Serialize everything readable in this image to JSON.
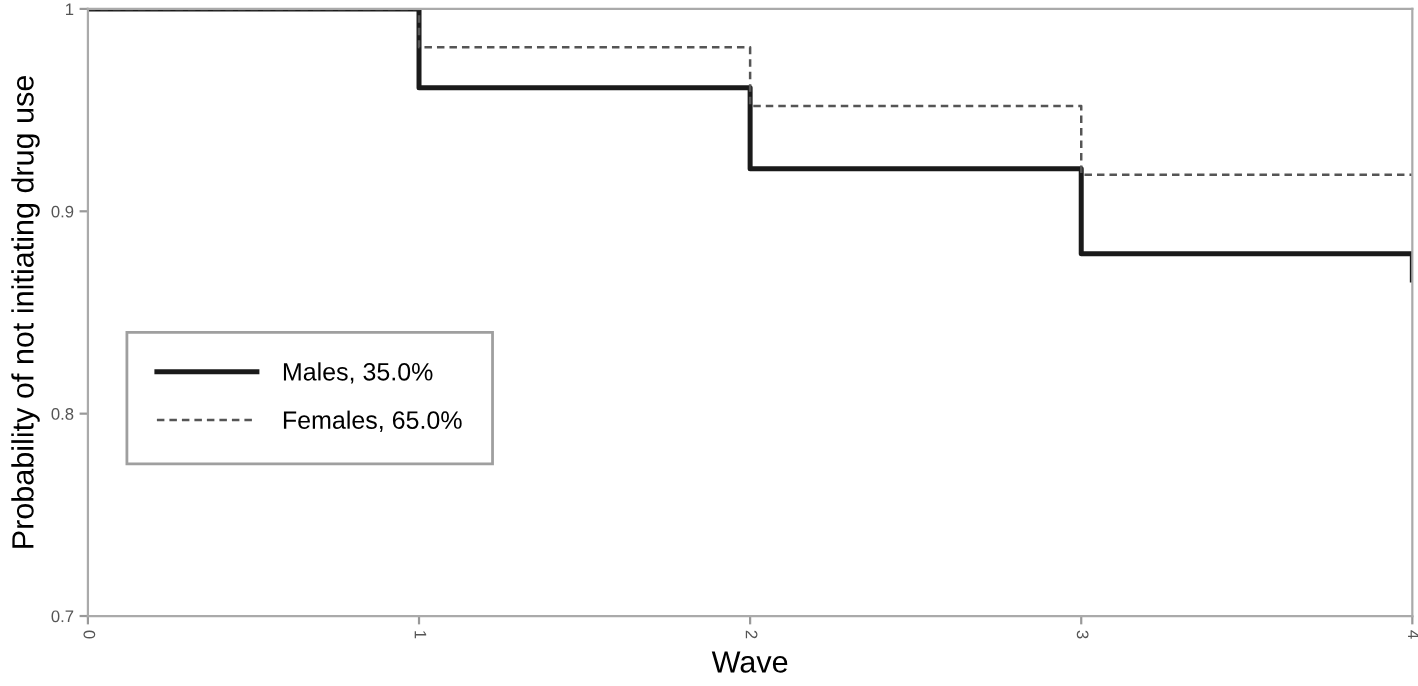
{
  "chart_data": {
    "type": "step",
    "xlabel": "Wave",
    "ylabel": "Probability of not initiating drug use",
    "x": [
      0,
      1,
      2,
      3,
      4
    ],
    "series": [
      {
        "name": "Males, 35.0%",
        "color": "#1a1a1a",
        "line_style": "solid",
        "values": [
          1,
          0.961,
          0.921,
          0.879,
          0.866
        ]
      },
      {
        "name": "Females, 65.0%",
        "color": "#555555",
        "line_style": "dashed",
        "values": [
          1,
          0.981,
          0.952,
          0.918,
          0.918
        ]
      }
    ],
    "xlim": [
      0,
      4
    ],
    "xticks": [
      0,
      1,
      2,
      3,
      4
    ],
    "ylim": [
      0.7,
      1
    ],
    "yticks": [
      0.7,
      0.8,
      0.9,
      1
    ],
    "grid": false,
    "legend": "bottom left"
  }
}
